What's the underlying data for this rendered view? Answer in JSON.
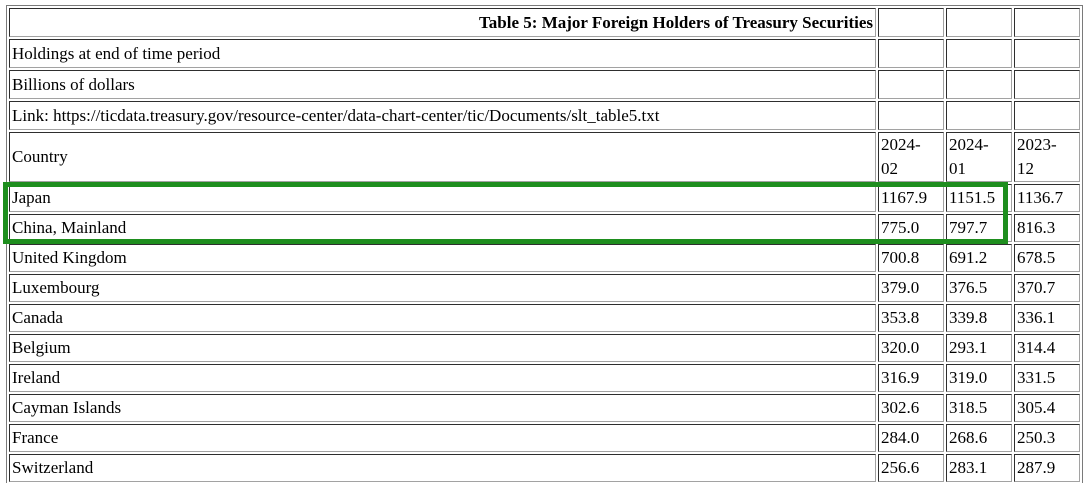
{
  "table": {
    "title": "Table 5: Major Foreign Holders of Treasury Securities",
    "meta": {
      "line1": "Holdings at end of time period",
      "line2": "Billions of dollars",
      "line3": "Link: https://ticdata.treasury.gov/resource-center/data-chart-center/tic/Documents/slt_table5.txt"
    },
    "columns": [
      "Country",
      "2024-02",
      "2024-01",
      "2023-12"
    ],
    "rows": [
      {
        "country": "Japan",
        "values": [
          "1167.9",
          "1151.5",
          "1136.7"
        ]
      },
      {
        "country": "China, Mainland",
        "values": [
          "775.0",
          "797.7",
          "816.3"
        ]
      },
      {
        "country": "United Kingdom",
        "values": [
          "700.8",
          "691.2",
          "678.5"
        ]
      },
      {
        "country": "Luxembourg",
        "values": [
          "379.0",
          "376.5",
          "370.7"
        ]
      },
      {
        "country": "Canada",
        "values": [
          "353.8",
          "339.8",
          "336.1"
        ]
      },
      {
        "country": "Belgium",
        "values": [
          "320.0",
          "293.1",
          "314.4"
        ]
      },
      {
        "country": "Ireland",
        "values": [
          "316.9",
          "319.0",
          "331.5"
        ]
      },
      {
        "country": "Cayman Islands",
        "values": [
          "302.6",
          "318.5",
          "305.4"
        ]
      },
      {
        "country": "France",
        "values": [
          "284.0",
          "268.6",
          "250.3"
        ]
      },
      {
        "country": "Switzerland",
        "values": [
          "256.6",
          "283.1",
          "287.9"
        ]
      }
    ]
  },
  "highlight": {
    "color": "#1e8e1e",
    "rows_covered": [
      "Japan",
      "China, Mainland"
    ],
    "columns_covered": [
      "Country",
      "2024-02",
      "2024-01"
    ]
  }
}
